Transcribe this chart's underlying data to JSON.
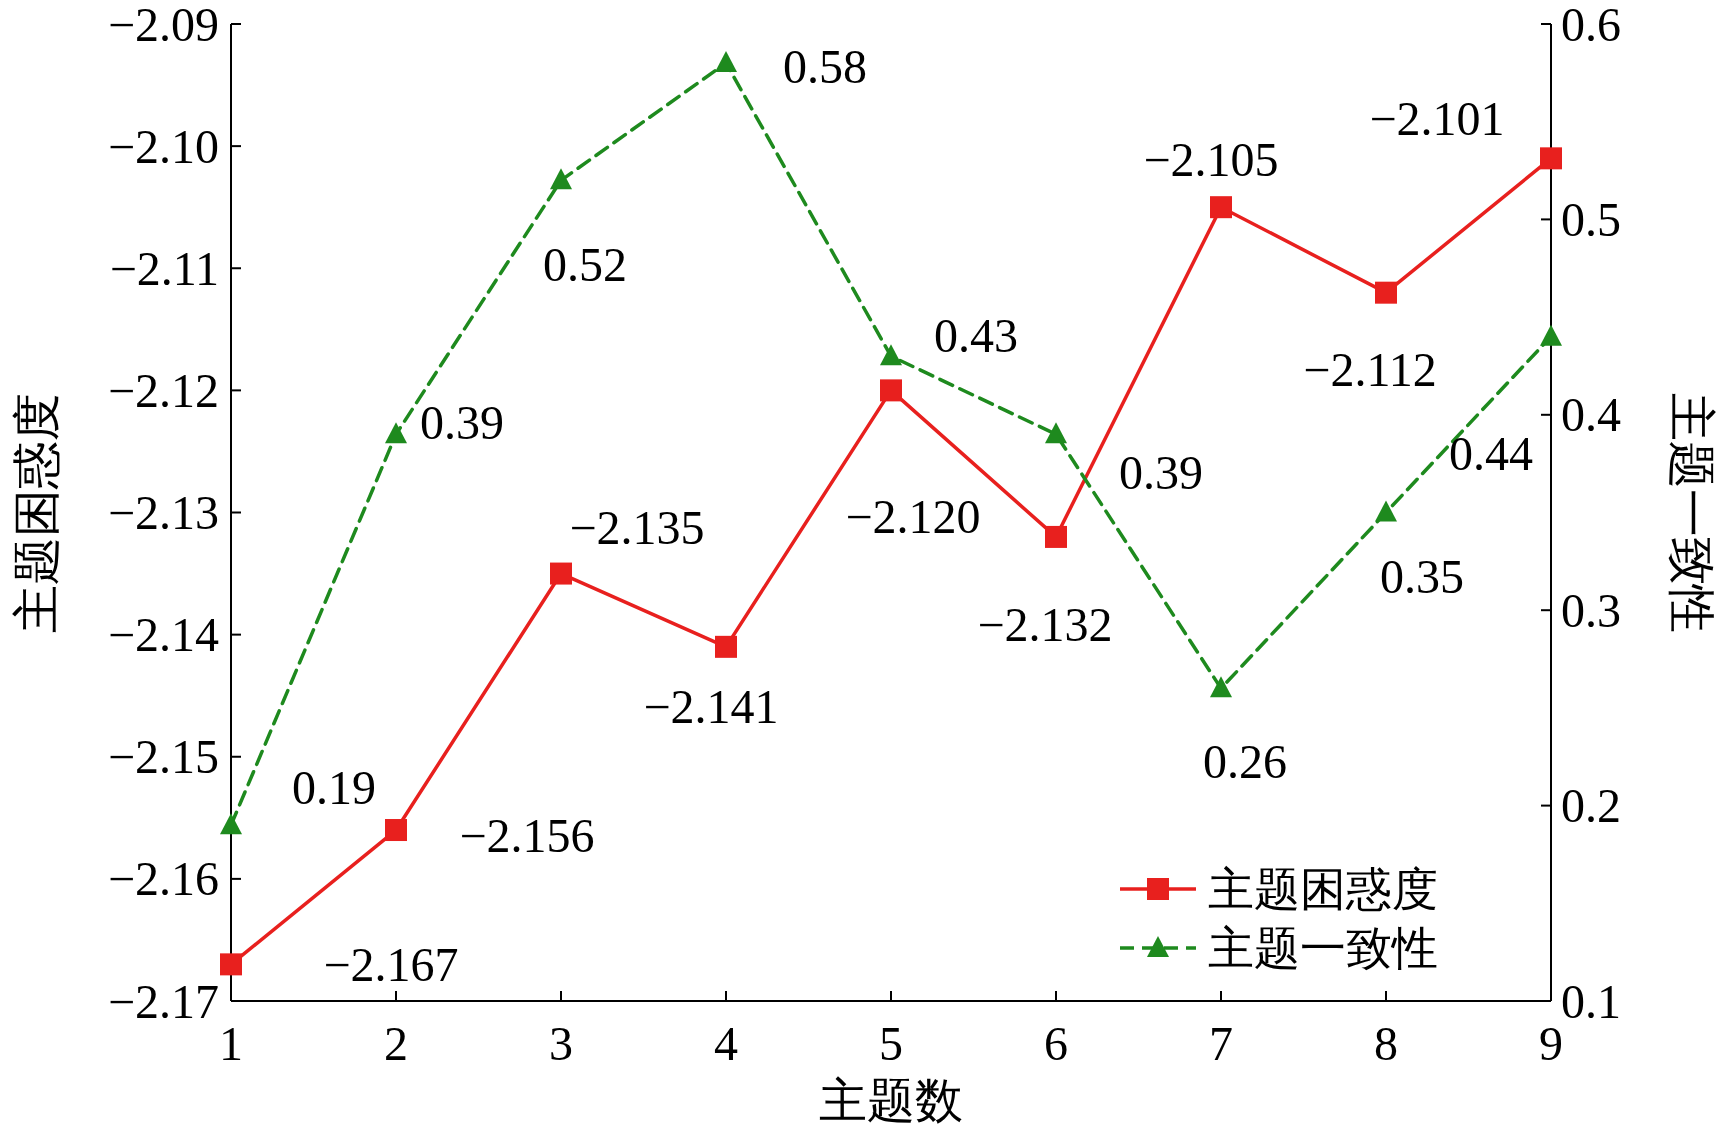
{
  "chart_data": {
    "type": "line",
    "xlabel": "主题数",
    "ylabel": "主题困惑度",
    "y2label": "主题一致性",
    "x": [
      1,
      2,
      3,
      4,
      5,
      6,
      7,
      8,
      9
    ],
    "series": [
      {
        "name": "主题困惑度",
        "color": "#e8201e",
        "marker": "square",
        "line_style": "solid",
        "values": [
          -2.167,
          -2.156,
          -2.135,
          -2.141,
          -2.12,
          -2.132,
          -2.105,
          -2.112,
          -2.101
        ],
        "value_labels": [
          "−2.167",
          "−2.156",
          "−2.135",
          "−2.141",
          "−2.120",
          "−2.132",
          "−2.105",
          "−2.112",
          "−2.101"
        ]
      },
      {
        "name": "主题一致性",
        "color": "#1e8a1e",
        "marker": "triangle",
        "line_style": "dashed",
        "axis": "y2",
        "values": [
          0.19,
          0.39,
          0.52,
          0.58,
          0.43,
          0.39,
          0.26,
          0.35,
          0.44
        ],
        "value_labels": [
          "0.19",
          "0.39",
          "0.52",
          "0.58",
          "0.43",
          "0.39",
          "0.26",
          "0.35",
          "0.44"
        ]
      }
    ],
    "xlim": [
      1,
      9
    ],
    "xticks": [
      1,
      2,
      3,
      4,
      5,
      6,
      7,
      8,
      9
    ],
    "ylim": [
      -2.17,
      -2.09
    ],
    "yticks": [
      {
        "value": -2.17,
        "label": "−2.17"
      },
      {
        "value": -2.16,
        "label": "−2.16"
      },
      {
        "value": -2.15,
        "label": "−2.15"
      },
      {
        "value": -2.14,
        "label": "−2.14"
      },
      {
        "value": -2.13,
        "label": "−2.13"
      },
      {
        "value": -2.12,
        "label": "−2.12"
      },
      {
        "value": -2.11,
        "label": "−2.11"
      },
      {
        "value": -2.1,
        "label": "−2.10"
      },
      {
        "value": -2.09,
        "label": "−2.09"
      }
    ],
    "y2lim": [
      0.1,
      0.6
    ],
    "y2ticks": [
      0.1,
      0.2,
      0.3,
      0.4,
      0.5,
      0.6
    ],
    "grid": false,
    "legend": "bottom right"
  }
}
